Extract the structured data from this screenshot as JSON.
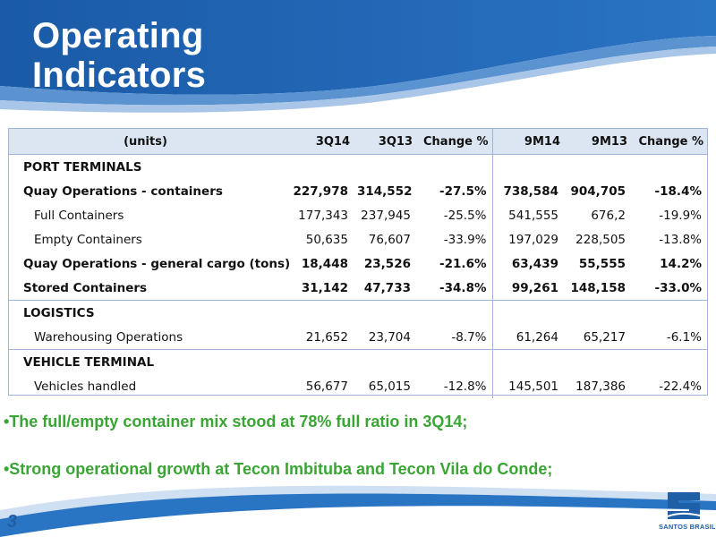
{
  "title_line1": "Operating",
  "title_line2": "Indicators",
  "table": {
    "headers": [
      "(units)",
      "3Q14",
      "3Q13",
      "Change %",
      "9M14",
      "9M13",
      "Change %"
    ],
    "rows": [
      {
        "label": "PORT TERMINALS",
        "values": [
          "",
          "",
          "",
          "",
          "",
          ""
        ]
      },
      {
        "label": "Quay Operations - containers",
        "values": [
          "227,978",
          "314,552",
          "-27.5%",
          "738,584",
          "904,705",
          "-18.4%"
        ]
      },
      {
        "label": "Full Containers",
        "values": [
          "177,343",
          "237,945",
          "-25.5%",
          "541,555",
          "676,2",
          "-19.9%"
        ]
      },
      {
        "label": "Empty Containers",
        "values": [
          "50,635",
          "76,607",
          "-33.9%",
          "197,029",
          "228,505",
          "-13.8%"
        ]
      },
      {
        "label": "Quay Operations - general cargo (tons)",
        "values": [
          "18,448",
          "23,526",
          "-21.6%",
          "63,439",
          "55,555",
          "14.2%"
        ]
      },
      {
        "label": "Stored Containers",
        "values": [
          "31,142",
          "47,733",
          "-34.8%",
          "99,261",
          "148,158",
          "-33.0%"
        ]
      },
      {
        "label": "LOGISTICS",
        "values": [
          "",
          "",
          "",
          "",
          "",
          ""
        ]
      },
      {
        "label": "Warehousing Operations",
        "values": [
          "21,652",
          "23,704",
          "-8.7%",
          "61,264",
          "65,217",
          "-6.1%"
        ]
      },
      {
        "label": "VEHICLE TERMINAL",
        "values": [
          "",
          "",
          "",
          "",
          "",
          ""
        ]
      },
      {
        "label": "Vehicles handled",
        "values": [
          "56,677",
          "65,015",
          "-12.8%",
          "145,501",
          "187,386",
          "-22.4%"
        ]
      }
    ]
  },
  "bullets": [
    "•The full/empty container mix stood at 78% full ratio in 3Q14;",
    "•Strong operational growth at Tecon Imbituba and Tecon Vila do Conde;"
  ],
  "page_number": "3",
  "brand": "SANTOS BRASIL",
  "colors": {
    "brand_blue": "#1f5fa6",
    "header_blue": "#1e63b0",
    "bullet_green": "#3aa535",
    "table_header": "#dce6f2"
  }
}
